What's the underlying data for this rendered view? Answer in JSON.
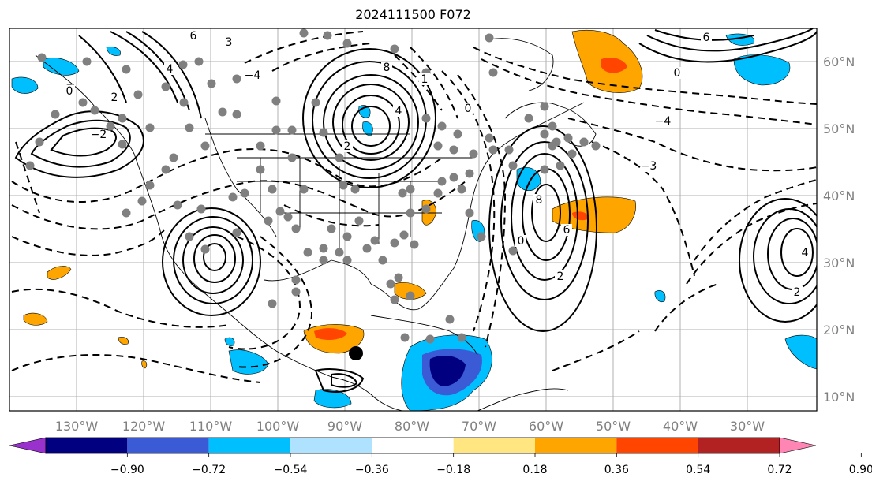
{
  "title": "2024111500 F072",
  "lon_labels": [
    "130°W",
    "120°W",
    "110°W",
    "100°W",
    "90°W",
    "80°W",
    "70°W",
    "60°W",
    "50°W",
    "40°W",
    "30°W"
  ],
  "lat_labels": [
    "60°N",
    "50°N",
    "40°N",
    "30°N",
    "20°N",
    "10°N"
  ],
  "colorbar": {
    "ticks": [
      "−0.90",
      "−0.72",
      "−0.54",
      "−0.36",
      "−0.18",
      "0.18",
      "0.36",
      "0.54",
      "0.72",
      "0.90"
    ],
    "colors": [
      "#9932cc",
      "#000080",
      "#3b5bd6",
      "#00bfff",
      "#aee2ff",
      "#ffffff",
      "#ffe680",
      "#ffa500",
      "#ff4500",
      "#b22222",
      "#ff85b5"
    ]
  },
  "contour_labels": [
    "6",
    "3",
    "4",
    "2",
    "0",
    "−2",
    "−4",
    "8",
    "1",
    "4",
    "0",
    "2",
    "0",
    "−4",
    "−3",
    "8",
    "6",
    "2",
    "0",
    "6",
    "4",
    "2"
  ],
  "station_marker": "black-dot"
}
